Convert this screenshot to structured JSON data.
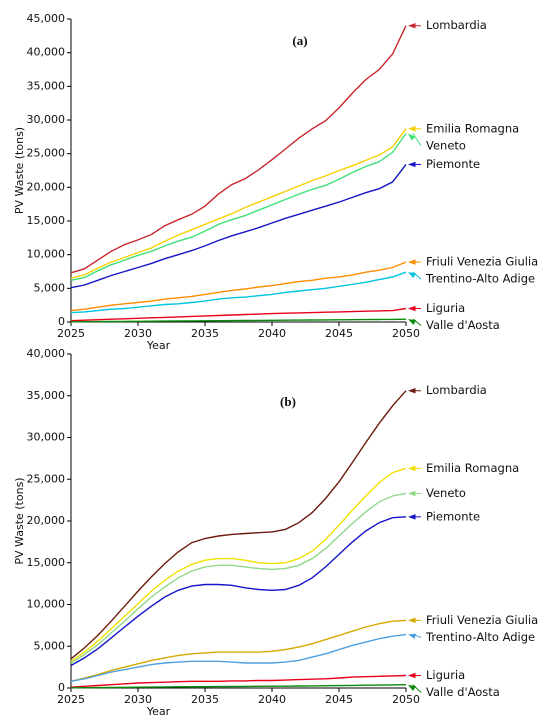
{
  "chart_data": [
    {
      "type": "line",
      "title": "(a)",
      "x_label": "Year",
      "y_label": "PV Waste (tons)",
      "x": [
        2025,
        2026,
        2027,
        2028,
        2029,
        2030,
        2031,
        2032,
        2033,
        2034,
        2035,
        2036,
        2037,
        2038,
        2039,
        2040,
        2041,
        2042,
        2043,
        2044,
        2045,
        2046,
        2047,
        2048,
        2049,
        2050
      ],
      "xlim": [
        2025,
        2050
      ],
      "xticks": [
        2025,
        2030,
        2035,
        2040,
        2045,
        2050
      ],
      "ylim": [
        0,
        45000
      ],
      "yticks": [
        0,
        {
          "value": 5000,
          "label": "5,000"
        },
        {
          "value": 10000,
          "label": "10,000"
        },
        {
          "value": 15000,
          "label": "15,000"
        },
        {
          "value": 20000,
          "label": "20,000"
        },
        {
          "value": 25000,
          "label": "25,000"
        },
        {
          "value": 30000,
          "label": "30,000"
        },
        {
          "value": 35000,
          "label": "35,000"
        },
        {
          "value": 40000,
          "label": "40,000"
        },
        {
          "value": 45000,
          "label": "45,000"
        }
      ],
      "series": [
        {
          "name": "Lombardia",
          "color": "#c8262d",
          "values": [
            7300,
            7900,
            9200,
            10500,
            11500,
            12200,
            13000,
            14300,
            15200,
            16000,
            17200,
            19000,
            20400,
            21300,
            22600,
            24100,
            25700,
            27300,
            28700,
            29900,
            31800,
            34000,
            36000,
            37500,
            39800,
            44000
          ]
        },
        {
          "name": "Emilia Romagna",
          "color": "#f5d000",
          "values": [
            6500,
            7000,
            8000,
            8900,
            9600,
            10300,
            11000,
            12000,
            12900,
            13700,
            14500,
            15300,
            16100,
            17000,
            17800,
            18600,
            19400,
            20200,
            21000,
            21700,
            22500,
            23200,
            24000,
            24800,
            26000,
            28700
          ]
        },
        {
          "name": "Veneto",
          "color": "#3ee07a",
          "values": [
            6200,
            6600,
            7600,
            8500,
            9200,
            9900,
            10500,
            11300,
            12000,
            12600,
            13500,
            14500,
            15200,
            15800,
            16600,
            17400,
            18200,
            19000,
            19700,
            20300,
            21200,
            22200,
            23100,
            23800,
            25200,
            28000
          ]
        },
        {
          "name": "Piemonte",
          "color": "#1414c8",
          "values": [
            5100,
            5500,
            6200,
            6900,
            7500,
            8100,
            8700,
            9400,
            10000,
            10600,
            11300,
            12100,
            12800,
            13400,
            14000,
            14700,
            15400,
            16000,
            16600,
            17200,
            17800,
            18500,
            19200,
            19800,
            20800,
            23400
          ]
        },
        {
          "name": "Friuli Venezia Giulia",
          "color": "#ff8c00",
          "values": [
            1700,
            1900,
            2200,
            2500,
            2700,
            2900,
            3100,
            3400,
            3600,
            3800,
            4100,
            4400,
            4700,
            4900,
            5200,
            5400,
            5700,
            6000,
            6200,
            6500,
            6700,
            7000,
            7400,
            7700,
            8100,
            8900
          ]
        },
        {
          "name": "Trentino-Alto Adige",
          "color": "#00c4e0",
          "values": [
            1400,
            1500,
            1700,
            1900,
            2000,
            2200,
            2400,
            2600,
            2700,
            2900,
            3100,
            3400,
            3600,
            3700,
            3900,
            4100,
            4400,
            4600,
            4800,
            5000,
            5300,
            5600,
            5900,
            6300,
            6700,
            7400
          ]
        },
        {
          "name": "Liguria",
          "color": "#e8001c",
          "values": [
            200,
            270,
            340,
            410,
            480,
            550,
            620,
            690,
            760,
            830,
            900,
            970,
            1040,
            1110,
            1180,
            1250,
            1300,
            1350,
            1400,
            1450,
            1500,
            1550,
            1600,
            1650,
            1700,
            2000
          ]
        },
        {
          "name": "Valle d'Aosta",
          "color": "#0a8a0a",
          "values": [
            30,
            45,
            60,
            75,
            90,
            105,
            120,
            135,
            150,
            165,
            180,
            195,
            210,
            225,
            240,
            255,
            270,
            285,
            300,
            315,
            330,
            345,
            360,
            375,
            390,
            420
          ]
        }
      ]
    },
    {
      "type": "line",
      "title": "(b)",
      "x_label": "Year",
      "y_label": "PV Waste (tons)",
      "x": [
        2025,
        2026,
        2027,
        2028,
        2029,
        2030,
        2031,
        2032,
        2033,
        2034,
        2035,
        2036,
        2037,
        2038,
        2039,
        2040,
        2041,
        2042,
        2043,
        2044,
        2045,
        2046,
        2047,
        2048,
        2049,
        2050
      ],
      "xlim": [
        2025,
        2050
      ],
      "xticks": [
        2025,
        2030,
        2035,
        2040,
        2045,
        2050
      ],
      "ylim": [
        0,
        40000
      ],
      "yticks": [
        0,
        {
          "value": 5000,
          "label": "5,000"
        },
        {
          "value": 10000,
          "label": "10,000"
        },
        {
          "value": 15000,
          "label": "15,000"
        },
        {
          "value": 20000,
          "label": "20,000"
        },
        {
          "value": 25000,
          "label": "25,000"
        },
        {
          "value": 30000,
          "label": "30,000"
        },
        {
          "value": 35000,
          "label": "35,000"
        },
        {
          "value": 40000,
          "label": "40,000"
        }
      ],
      "series": [
        {
          "name": "Lombardia",
          "color": "#6b1a0e",
          "values": [
            3500,
            4800,
            6300,
            8000,
            9800,
            11600,
            13300,
            14900,
            16300,
            17400,
            17900,
            18200,
            18400,
            18500,
            18600,
            18700,
            19000,
            19800,
            21000,
            22700,
            24700,
            27000,
            29400,
            31700,
            33800,
            35600
          ]
        },
        {
          "name": "Emilia Romagna",
          "color": "#f0e000",
          "values": [
            3200,
            4300,
            5600,
            7100,
            8600,
            10100,
            11600,
            12900,
            14000,
            14800,
            15300,
            15500,
            15500,
            15300,
            15000,
            14900,
            15000,
            15500,
            16400,
            17800,
            19500,
            21300,
            23000,
            24600,
            25800,
            26300
          ]
        },
        {
          "name": "Veneto",
          "color": "#8fd88a",
          "values": [
            3000,
            4000,
            5200,
            6600,
            8000,
            9500,
            10900,
            12100,
            13200,
            14000,
            14500,
            14700,
            14700,
            14500,
            14300,
            14200,
            14300,
            14700,
            15500,
            16700,
            18200,
            19700,
            21100,
            22300,
            23000,
            23300
          ]
        },
        {
          "name": "Piemonte",
          "color": "#1414c8",
          "values": [
            2700,
            3600,
            4700,
            6000,
            7300,
            8600,
            9800,
            10900,
            11700,
            12200,
            12400,
            12400,
            12300,
            12000,
            11800,
            11700,
            11800,
            12300,
            13200,
            14500,
            16000,
            17500,
            18800,
            19800,
            20400,
            20500
          ]
        },
        {
          "name": "Friuli Venezia Giulia",
          "color": "#d4aa00",
          "values": [
            800,
            1200,
            1600,
            2100,
            2500,
            2900,
            3300,
            3600,
            3900,
            4100,
            4200,
            4300,
            4300,
            4300,
            4300,
            4400,
            4600,
            4900,
            5300,
            5800,
            6300,
            6800,
            7300,
            7700,
            8000,
            8100
          ]
        },
        {
          "name": "Trentino-Alto Adige",
          "color": "#4fa0e0",
          "values": [
            800,
            1100,
            1500,
            1900,
            2200,
            2500,
            2800,
            3000,
            3100,
            3200,
            3200,
            3200,
            3100,
            3000,
            3000,
            3000,
            3100,
            3300,
            3700,
            4100,
            4600,
            5100,
            5500,
            5900,
            6200,
            6400
          ]
        },
        {
          "name": "Liguria",
          "color": "#e8001c",
          "values": [
            100,
            200,
            300,
            400,
            500,
            600,
            650,
            700,
            750,
            800,
            800,
            800,
            850,
            850,
            900,
            900,
            950,
            1000,
            1050,
            1100,
            1200,
            1300,
            1350,
            1400,
            1450,
            1500
          ]
        },
        {
          "name": "Valle d'Aosta",
          "color": "#0a8a0a",
          "values": [
            20,
            35,
            50,
            65,
            80,
            95,
            110,
            125,
            140,
            150,
            160,
            170,
            180,
            190,
            200,
            210,
            220,
            235,
            250,
            270,
            290,
            310,
            330,
            350,
            370,
            390
          ]
        }
      ]
    }
  ]
}
